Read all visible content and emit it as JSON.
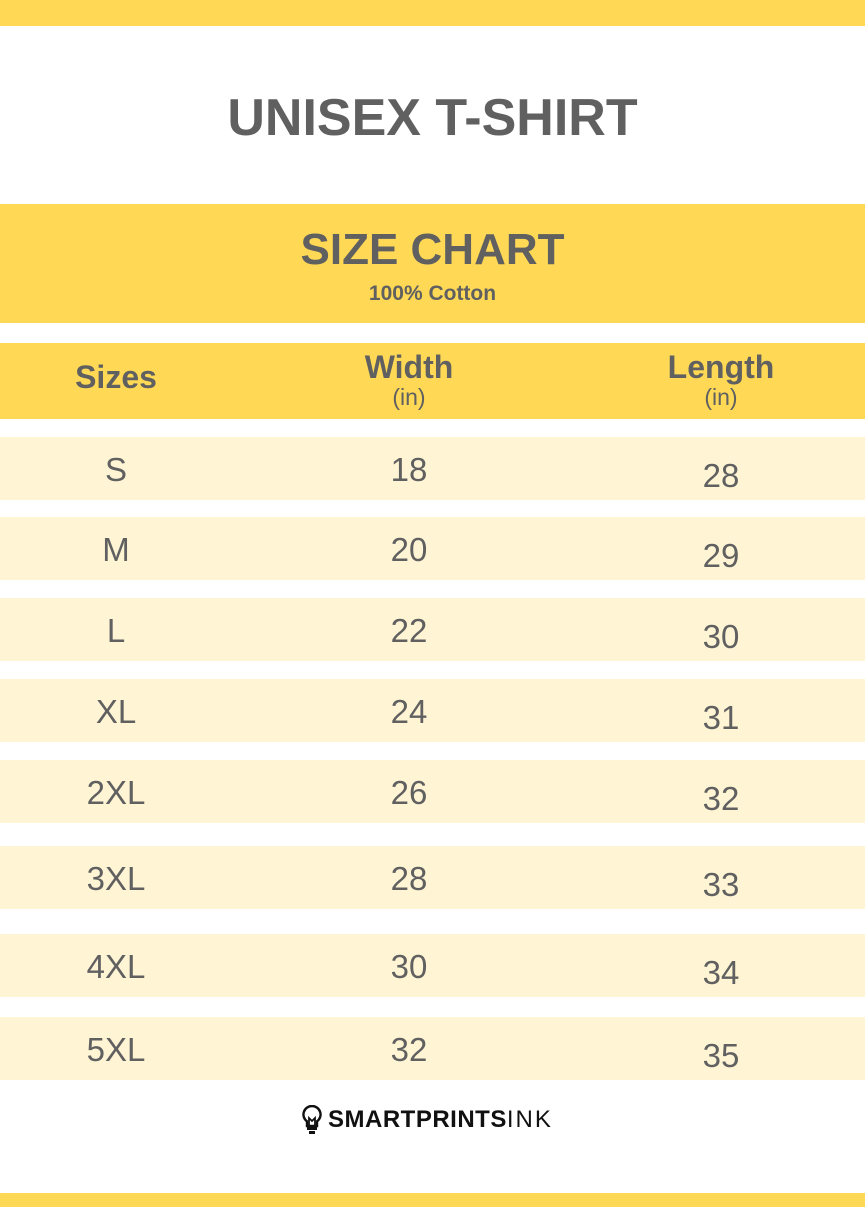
{
  "title": "UNISEX T-SHIRT",
  "chart": {
    "heading": "SIZE CHART",
    "material": "100% Cotton"
  },
  "columns": [
    {
      "label": "Sizes",
      "unit": ""
    },
    {
      "label": "Width",
      "unit": "(in)"
    },
    {
      "label": "Length",
      "unit": "(in)"
    }
  ],
  "rows": [
    {
      "size": "S",
      "width": "18",
      "length": "28"
    },
    {
      "size": "M",
      "width": "20",
      "length": "29"
    },
    {
      "size": "L",
      "width": "22",
      "length": "30"
    },
    {
      "size": "XL",
      "width": "24",
      "length": "31"
    },
    {
      "size": "2XL",
      "width": "26",
      "length": "32"
    },
    {
      "size": "3XL",
      "width": "28",
      "length": "33"
    },
    {
      "size": "4XL",
      "width": "30",
      "length": "34"
    },
    {
      "size": "5XL",
      "width": "32",
      "length": "35"
    }
  ],
  "brand": {
    "bold": "SMARTPRINTS",
    "light": "INK",
    "icon": "lightbulb-icon"
  },
  "colors": {
    "accent": "#FFD955",
    "row": "#FFF4D4",
    "text": "#606060"
  }
}
